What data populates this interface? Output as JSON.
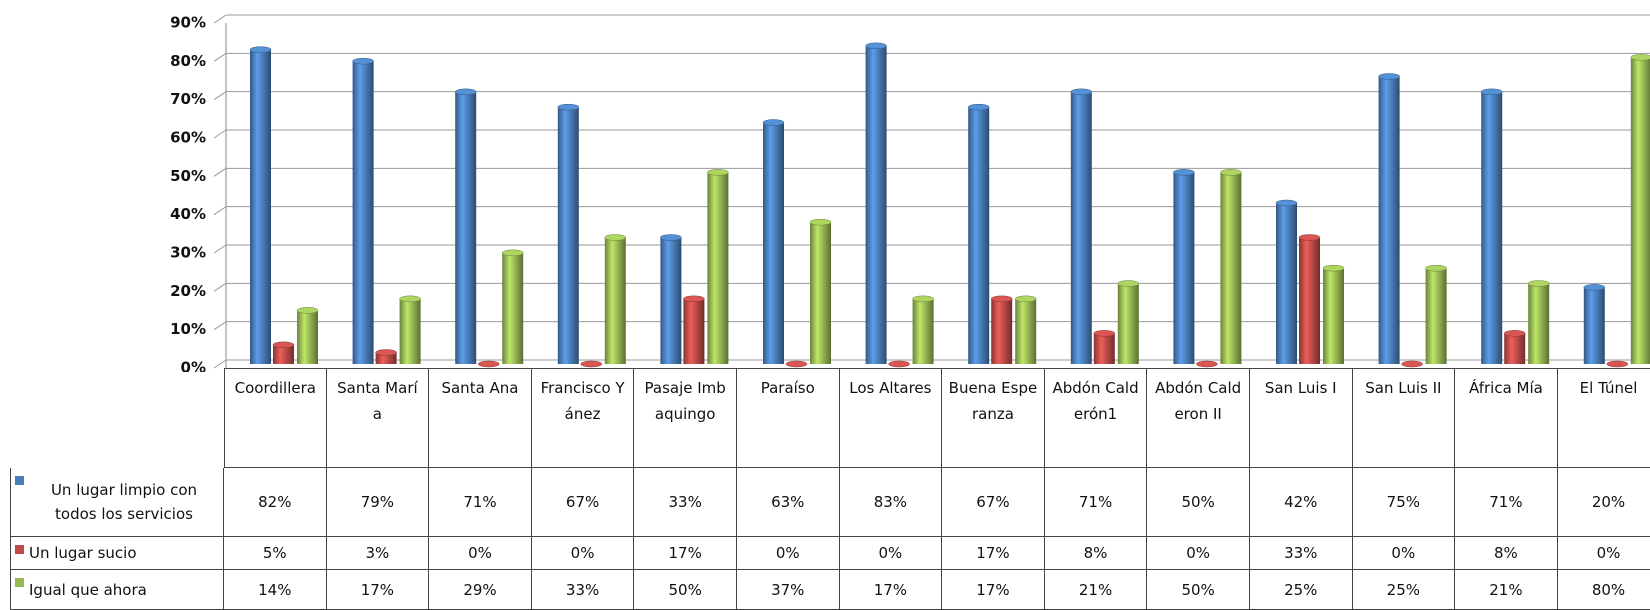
{
  "chart_data": {
    "type": "bar",
    "categories": [
      "Coordillera",
      "Santa María",
      "Santa Ana",
      "Francisco Yánez",
      "Pasaje Imbaquingo",
      "Paraíso",
      "Los Altares",
      "Buena Esperanza",
      "Abdón Calderón1",
      "Abdón Calderon II",
      "San Luis I",
      "San Luis II",
      "África Mía",
      "El Túnel"
    ],
    "series": [
      {
        "name": "Un lugar limpio con todos los servicios",
        "color": "#4a7ebb",
        "values": [
          82,
          79,
          71,
          67,
          33,
          63,
          83,
          67,
          71,
          50,
          42,
          75,
          71,
          20
        ],
        "value_labels": [
          "82%",
          "79%",
          "71%",
          "67%",
          "33%",
          "63%",
          "83%",
          "67%",
          "71%",
          "50%",
          "42%",
          "75%",
          "71%",
          "20%"
        ]
      },
      {
        "name": "Un lugar sucio",
        "color": "#be4b48",
        "values": [
          5,
          3,
          0,
          0,
          17,
          0,
          0,
          17,
          8,
          0,
          33,
          0,
          8,
          0
        ],
        "value_labels": [
          "5%",
          "3%",
          "0%",
          "0%",
          "17%",
          "0%",
          "0%",
          "17%",
          "8%",
          "0%",
          "33%",
          "0%",
          "8%",
          "0%"
        ]
      },
      {
        "name": "Igual que ahora",
        "color": "#98b954",
        "values": [
          14,
          17,
          29,
          33,
          50,
          37,
          17,
          17,
          21,
          50,
          25,
          25,
          21,
          80
        ],
        "value_labels": [
          "14%",
          "17%",
          "29%",
          "33%",
          "50%",
          "37%",
          "17%",
          "17%",
          "21%",
          "50%",
          "25%",
          "25%",
          "21%",
          "80%"
        ]
      }
    ],
    "ylim": [
      0,
      90
    ],
    "yticks": [
      {
        "value": 0,
        "label": "0%"
      },
      {
        "value": 10,
        "label": "10%"
      },
      {
        "value": 20,
        "label": "20%"
      },
      {
        "value": 30,
        "label": "30%"
      },
      {
        "value": 40,
        "label": "40%"
      },
      {
        "value": 50,
        "label": "50%"
      },
      {
        "value": 60,
        "label": "60%"
      },
      {
        "value": 70,
        "label": "70%"
      },
      {
        "value": 80,
        "label": "80%"
      },
      {
        "value": 90,
        "label": "90%"
      }
    ],
    "grid": true
  }
}
